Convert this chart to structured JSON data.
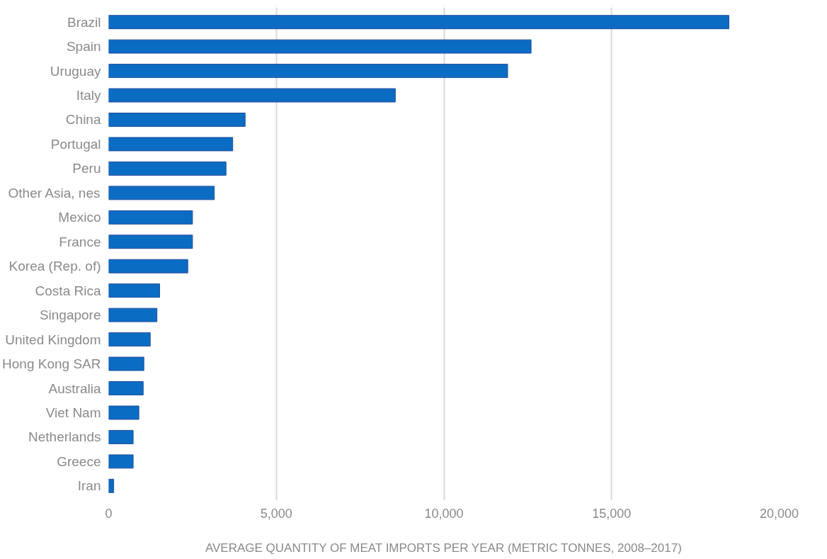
{
  "chart_data": {
    "type": "bar",
    "orientation": "horizontal",
    "xlabel": "AVERAGE QUANTITY OF MEAT IMPORTS PER YEAR (METRIC TONNES, 2008–2017)",
    "categories": [
      "Brazil",
      "Spain",
      "Uruguay",
      "Italy",
      "China",
      "Portugal",
      "Peru",
      "Other Asia, nes",
      "Mexico",
      "France",
      "Korea (Rep. of)",
      "Costa Rica",
      "Singapore",
      "United Kingdom",
      "Hong Kong SAR",
      "Australia",
      "Viet Nam",
      "Netherlands",
      "Greece",
      "Iran"
    ],
    "values": [
      18500,
      12600,
      11900,
      8550,
      4070,
      3700,
      3500,
      3150,
      2500,
      2500,
      2360,
      1520,
      1440,
      1240,
      1050,
      1030,
      900,
      730,
      730,
      150
    ],
    "color": "#0b6cc4",
    "xlim": [
      0,
      20000
    ],
    "xticks": [
      0,
      {
        "value": 5000,
        "label": "5,000"
      },
      {
        "value": 10000,
        "label": "10,000"
      },
      {
        "value": 15000,
        "label": "15,000"
      },
      {
        "value": 20000,
        "label": "20,000"
      }
    ],
    "grid": "x"
  }
}
